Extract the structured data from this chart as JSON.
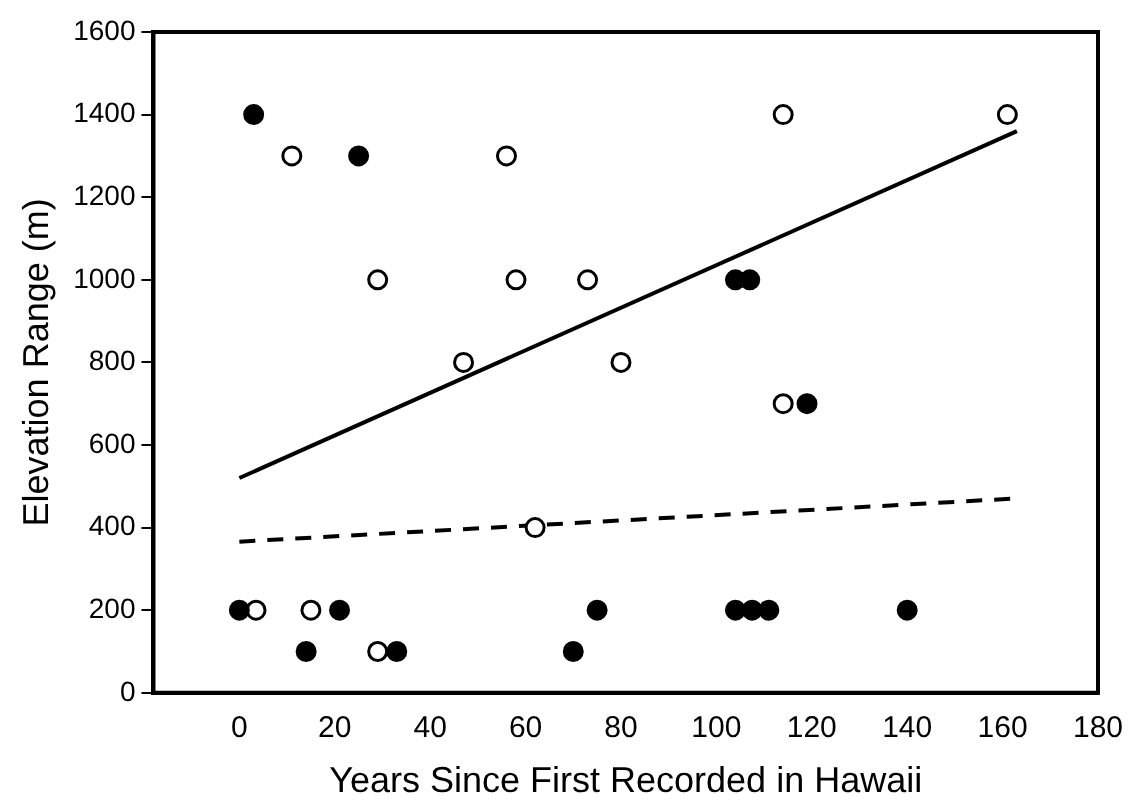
{
  "chart_data": {
    "type": "scatter",
    "xlabel": "Years Since First Recorded in Hawaii",
    "ylabel": "Elevation Range (m)",
    "xlim": [
      -18,
      180
    ],
    "xticks": [
      0,
      20,
      40,
      60,
      80,
      100,
      120,
      140,
      160,
      180
    ],
    "ylim": [
      0,
      1600
    ],
    "yticks": [
      0,
      200,
      400,
      600,
      800,
      1000,
      1200,
      1400,
      1600
    ],
    "grid": false,
    "legend": false,
    "marker": "circle",
    "series": [
      {
        "type": "scatter",
        "color": "#000000",
        "x": [
          3,
          25,
          0,
          21,
          75,
          14,
          33,
          70,
          104,
          107,
          119,
          104,
          107.5,
          111,
          140
        ],
        "values": [
          1400,
          1300,
          200,
          200,
          200,
          100,
          100,
          100,
          1000,
          1000,
          700,
          200,
          200,
          200,
          200
        ]
      },
      {
        "type": "scatter",
        "color": "#ffffff",
        "x": [
          11,
          56,
          29,
          58,
          73,
          47,
          80,
          62,
          3.5,
          15,
          29,
          114,
          161,
          114
        ],
        "values": [
          1300,
          1300,
          1000,
          1000,
          1000,
          800,
          800,
          400,
          200,
          200,
          100,
          1400,
          1400,
          700
        ]
      },
      {
        "type": "line",
        "color": "#000000",
        "line_style": "solid",
        "marker": "none",
        "x": [
          0,
          163
        ],
        "values": [
          520,
          1360
        ]
      },
      {
        "type": "line",
        "color": "#000000",
        "line_style": "dashed",
        "marker": "none",
        "x": [
          0,
          162
        ],
        "values": [
          366,
          470
        ]
      }
    ]
  }
}
